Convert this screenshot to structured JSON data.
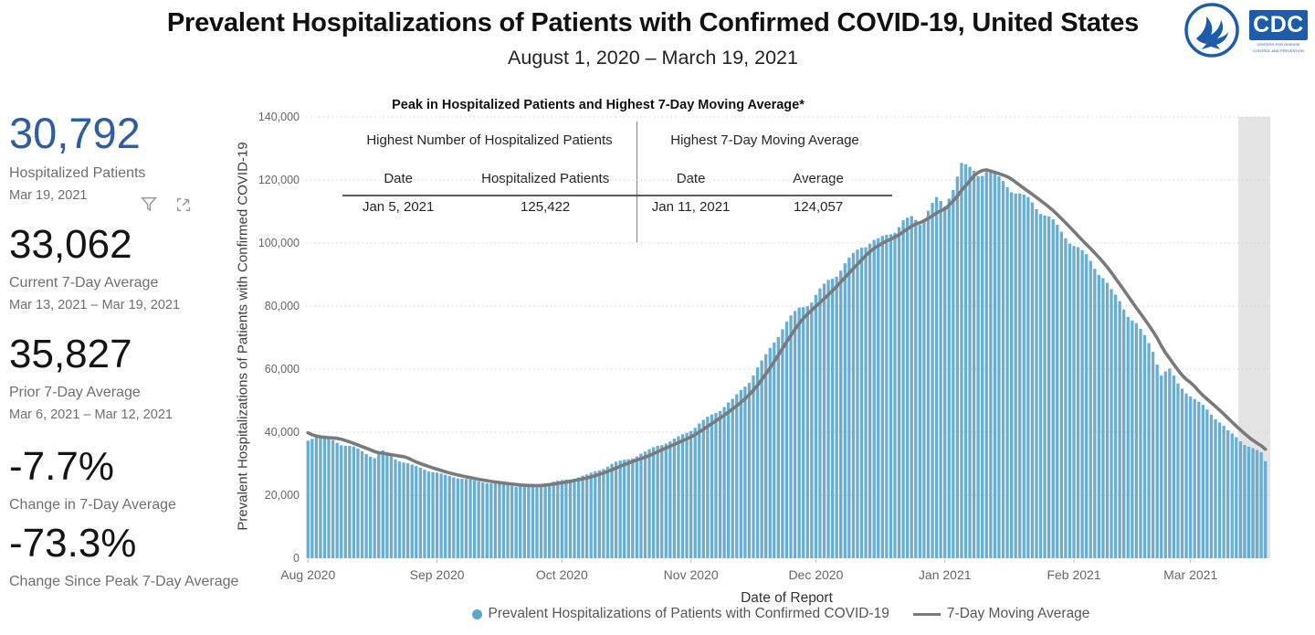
{
  "header": {
    "title": "Prevalent Hospitalizations of Patients with Confirmed COVID-19, United States",
    "subtitle": "August 1, 2020 – March 19, 2021"
  },
  "logos": {
    "cdc_text": "CDC",
    "cdc_sub1": "CENTERS FOR DISEASE",
    "cdc_sub2": "CONTROL AND PREVENTION"
  },
  "sidebar": {
    "stats": [
      {
        "value": "30,792",
        "label": "Hospitalized Patients",
        "sub": "Mar 19, 2021"
      },
      {
        "value": "33,062",
        "label": "Current 7-Day Average",
        "sub": "Mar 13, 2021 – Mar 19, 2021"
      },
      {
        "value": "35,827",
        "label": "Prior 7-Day Average",
        "sub": "Mar 6, 2021 – Mar 12, 2021"
      },
      {
        "value": "-7.7%",
        "label": "Change in 7-Day Average",
        "sub": ""
      },
      {
        "value": "-73.3%",
        "label": "Change Since Peak 7-Day Average",
        "sub": ""
      }
    ]
  },
  "chart": {
    "inner_title": "Peak in Hospitalized Patients and Highest 7-Day Moving Average*",
    "y_axis_title": "Prevalent Hospitalizations of Patients with Confirmed COVID-19",
    "x_axis_title": "Date of Report",
    "peak_table": {
      "left_title": "Highest Number of Hospitalized Patients",
      "left_col1": "Date",
      "left_col2": "Hospitalized Patients",
      "left_val1": "Jan 5, 2021",
      "left_val2": "125,422",
      "right_title": "Highest 7-Day Moving Average",
      "right_col1": "Date",
      "right_col2": "Average",
      "right_val1": "Jan 11, 2021",
      "right_val2": "124,057"
    },
    "legend": [
      {
        "marker": "circle",
        "label": "Prevalent Hospitalizations of Patients with Confirmed COVID-19"
      },
      {
        "marker": "line",
        "label": "7-Day Moving Average"
      }
    ]
  },
  "chart_data": {
    "type": "bar",
    "title": "Prevalent Hospitalizations of Patients with Confirmed COVID-19, United States",
    "xlabel": "Date of Report",
    "ylabel": "Prevalent Hospitalizations of Patients with Confirmed COVID-19",
    "start_date": "2020-08-01",
    "end_date": "2021-03-19",
    "ylim": [
      0,
      140000
    ],
    "y_tick_step": 20000,
    "grid": "horizontal-dotted",
    "bar_color": "#69add3",
    "line_color": "#7a7a7a",
    "highlight_band": {
      "start": "2021-03-13",
      "end": "2021-03-19",
      "color": "#e4e4e4",
      "meaning": "current 7-day window"
    },
    "x_ticks": [
      {
        "date": "2020-08-01",
        "label": "Aug 2020"
      },
      {
        "date": "2020-09-01",
        "label": "Sep 2020"
      },
      {
        "date": "2020-10-01",
        "label": "Oct 2020"
      },
      {
        "date": "2020-11-01",
        "label": "Nov 2020"
      },
      {
        "date": "2020-12-01",
        "label": "Dec 2020"
      },
      {
        "date": "2021-01-01",
        "label": "Jan 2021"
      },
      {
        "date": "2021-02-01",
        "label": "Feb 2021"
      },
      {
        "date": "2021-03-01",
        "label": "Mar 2021"
      }
    ],
    "series": [
      {
        "name": "Prevalent Hospitalizations of Patients with Confirmed COVID-19",
        "type": "bar",
        "sampling": "daily; values below are estimated anchors read from the plot, daily bars interpolated between them",
        "peak": {
          "date": "2021-01-05",
          "value": 125422
        },
        "last": {
          "date": "2021-03-19",
          "value": 30792
        },
        "anchors": [
          [
            "2020-08-01",
            37500
          ],
          [
            "2020-08-03",
            39000
          ],
          [
            "2020-08-06",
            38000
          ],
          [
            "2020-08-09",
            36200
          ],
          [
            "2020-08-12",
            35200
          ],
          [
            "2020-08-15",
            33200
          ],
          [
            "2020-08-17",
            31900
          ],
          [
            "2020-08-19",
            34000
          ],
          [
            "2020-08-22",
            31500
          ],
          [
            "2020-08-26",
            29500
          ],
          [
            "2020-08-30",
            27800
          ],
          [
            "2020-09-03",
            26300
          ],
          [
            "2020-09-07",
            25300
          ],
          [
            "2020-09-11",
            24300
          ],
          [
            "2020-09-15",
            23700
          ],
          [
            "2020-09-20",
            22900
          ],
          [
            "2020-09-25",
            23200
          ],
          [
            "2020-09-29",
            24200
          ],
          [
            "2020-10-03",
            25100
          ],
          [
            "2020-10-07",
            26400
          ],
          [
            "2020-10-11",
            28600
          ],
          [
            "2020-10-14",
            30400
          ],
          [
            "2020-10-18",
            31900
          ],
          [
            "2020-10-21",
            33600
          ],
          [
            "2020-10-24",
            35900
          ],
          [
            "2020-10-27",
            36900
          ],
          [
            "2020-10-30",
            39200
          ],
          [
            "2020-11-02",
            41600
          ],
          [
            "2020-11-05",
            44600
          ],
          [
            "2020-11-08",
            47200
          ],
          [
            "2020-11-11",
            50200
          ],
          [
            "2020-11-13",
            53200
          ],
          [
            "2020-11-15",
            56200
          ],
          [
            "2020-11-17",
            60300
          ],
          [
            "2020-11-19",
            64300
          ],
          [
            "2020-11-21",
            68800
          ],
          [
            "2020-11-23",
            73000
          ],
          [
            "2020-11-25",
            76500
          ],
          [
            "2020-11-27",
            79300
          ],
          [
            "2020-11-30",
            81500
          ],
          [
            "2020-12-02",
            85000
          ],
          [
            "2020-12-04",
            88000
          ],
          [
            "2020-12-06",
            90200
          ],
          [
            "2020-12-08",
            93200
          ],
          [
            "2020-12-10",
            96200
          ],
          [
            "2020-12-12",
            99000
          ],
          [
            "2020-12-14",
            100300
          ],
          [
            "2020-12-16",
            100800
          ],
          [
            "2020-12-18",
            102300
          ],
          [
            "2020-12-20",
            104300
          ],
          [
            "2020-12-22",
            106800
          ],
          [
            "2020-12-24",
            107800
          ],
          [
            "2020-12-26",
            106300
          ],
          [
            "2020-12-28",
            110800
          ],
          [
            "2020-12-30",
            113800
          ],
          [
            "2021-01-01",
            111300
          ],
          [
            "2021-01-03",
            118000
          ],
          [
            "2021-01-05",
            125422
          ],
          [
            "2021-01-07",
            123300
          ],
          [
            "2021-01-09",
            121800
          ],
          [
            "2021-01-11",
            123200
          ],
          [
            "2021-01-13",
            121300
          ],
          [
            "2021-01-15",
            119300
          ],
          [
            "2021-01-17",
            117300
          ],
          [
            "2021-01-19",
            115300
          ],
          [
            "2021-01-21",
            113800
          ],
          [
            "2021-01-23",
            111300
          ],
          [
            "2021-01-25",
            109300
          ],
          [
            "2021-01-27",
            106800
          ],
          [
            "2021-01-29",
            103300
          ],
          [
            "2021-01-31",
            100800
          ],
          [
            "2021-02-02",
            98300
          ],
          [
            "2021-02-04",
            95800
          ],
          [
            "2021-02-06",
            92300
          ],
          [
            "2021-02-08",
            89300
          ],
          [
            "2021-02-10",
            84800
          ],
          [
            "2021-02-12",
            81300
          ],
          [
            "2021-02-14",
            77300
          ],
          [
            "2021-02-16",
            74300
          ],
          [
            "2021-02-18",
            70300
          ],
          [
            "2021-02-20",
            65800
          ],
          [
            "2021-02-22",
            58300
          ],
          [
            "2021-02-24",
            59800
          ],
          [
            "2021-02-26",
            55300
          ],
          [
            "2021-02-28",
            52800
          ],
          [
            "2021-03-02",
            50300
          ],
          [
            "2021-03-04",
            48300
          ],
          [
            "2021-03-06",
            45800
          ],
          [
            "2021-03-08",
            43300
          ],
          [
            "2021-03-10",
            40300
          ],
          [
            "2021-03-12",
            38300
          ],
          [
            "2021-03-14",
            36300
          ],
          [
            "2021-03-16",
            34800
          ],
          [
            "2021-03-18",
            33400
          ],
          [
            "2021-03-19",
            30792
          ]
        ]
      },
      {
        "name": "7-Day Moving Average",
        "type": "line",
        "derived": "7-day trailing mean of the daily bar values",
        "peak": {
          "date": "2021-01-11",
          "value": 124057
        },
        "current": {
          "window": "2021-03-13 – 2021-03-19",
          "value": 33062
        },
        "prior": {
          "window": "2021-03-06 – 2021-03-12",
          "value": 35827
        }
      }
    ]
  }
}
